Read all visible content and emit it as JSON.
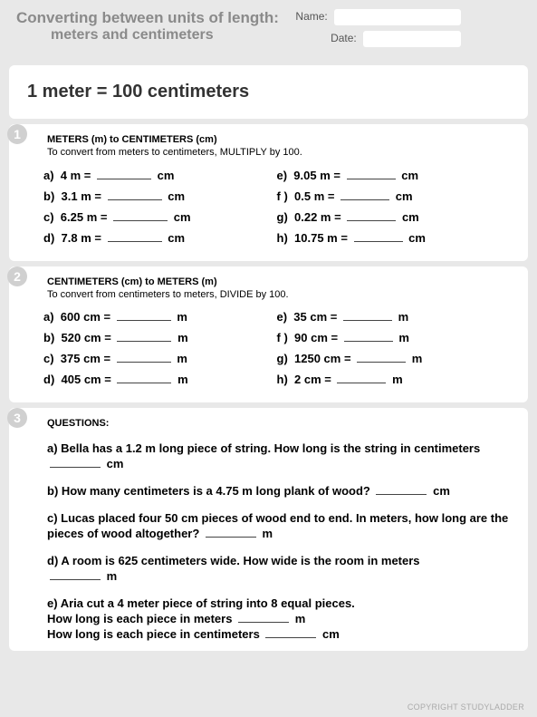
{
  "header": {
    "title_line1": "Converting between units of length:",
    "title_line2": "meters and centimeters",
    "name_label": "Name:",
    "date_label": "Date:",
    "name_value": "",
    "date_value": ""
  },
  "conversion_rule": "1 meter = 100 centimeters",
  "section1": {
    "number": "1",
    "title": "METERS (m) to CENTIMETERS (cm)",
    "instruction": "To convert from meters to centimeters, MULTIPLY by 100.",
    "unit": "cm",
    "left": [
      {
        "l": "a)",
        "v": "4 m ="
      },
      {
        "l": "b)",
        "v": "3.1 m ="
      },
      {
        "l": "c)",
        "v": "6.25 m ="
      },
      {
        "l": "d)",
        "v": "7.8 m ="
      }
    ],
    "right": [
      {
        "l": "e)",
        "v": "9.05 m ="
      },
      {
        "l": "f )",
        "v": "0.5 m ="
      },
      {
        "l": "g)",
        "v": "0.22 m ="
      },
      {
        "l": "h)",
        "v": "10.75 m ="
      }
    ]
  },
  "section2": {
    "number": "2",
    "title": "CENTIMETERS (cm) to METERS (m)",
    "instruction": "To convert from centimeters to meters, DIVIDE by 100.",
    "unit": "m",
    "left": [
      {
        "l": "a)",
        "v": "600 cm ="
      },
      {
        "l": "b)",
        "v": "520 cm ="
      },
      {
        "l": "c)",
        "v": "375 cm ="
      },
      {
        "l": "d)",
        "v": "405 cm ="
      }
    ],
    "right": [
      {
        "l": "e)",
        "v": "35 cm ="
      },
      {
        "l": "f )",
        "v": "90 cm ="
      },
      {
        "l": "g)",
        "v": "1250 cm  ="
      },
      {
        "l": "h)",
        "v": "2 cm ="
      }
    ]
  },
  "section3": {
    "number": "3",
    "title": "QUESTIONS:",
    "qa": {
      "pre": "a) Bella has a 1.2 m long piece of string. How long is the string in centimeters",
      "unit": "cm"
    },
    "qb": {
      "pre": "b) How many centimeters is a 4.75 m long plank of wood?",
      "unit": "cm"
    },
    "qc": {
      "pre": "c) Lucas placed four 50 cm pieces of wood end to end. In meters, how long are the pieces of wood altogether?",
      "unit": "m"
    },
    "qd": {
      "pre": "d) A room is 625 centimeters wide. How wide is the room in meters",
      "unit": "m"
    },
    "qe": {
      "line1": "e) Aria cut a 4 meter piece of string into 8 equal pieces.",
      "line2_pre": "How long is each piece in meters",
      "line2_unit": "m",
      "line3_pre": "How long is each piece in centimeters",
      "line3_unit": "cm"
    }
  },
  "footer": "COPYRIGHT STUDYLADDER",
  "colors": {
    "page_bg": "#e8e8e8",
    "card_bg": "#ffffff",
    "title_color": "#8a8a8a",
    "circle_bg": "#d0d0d0",
    "circle_fg": "#ffffff",
    "text": "#333333",
    "footer": "#aaaaaa"
  }
}
